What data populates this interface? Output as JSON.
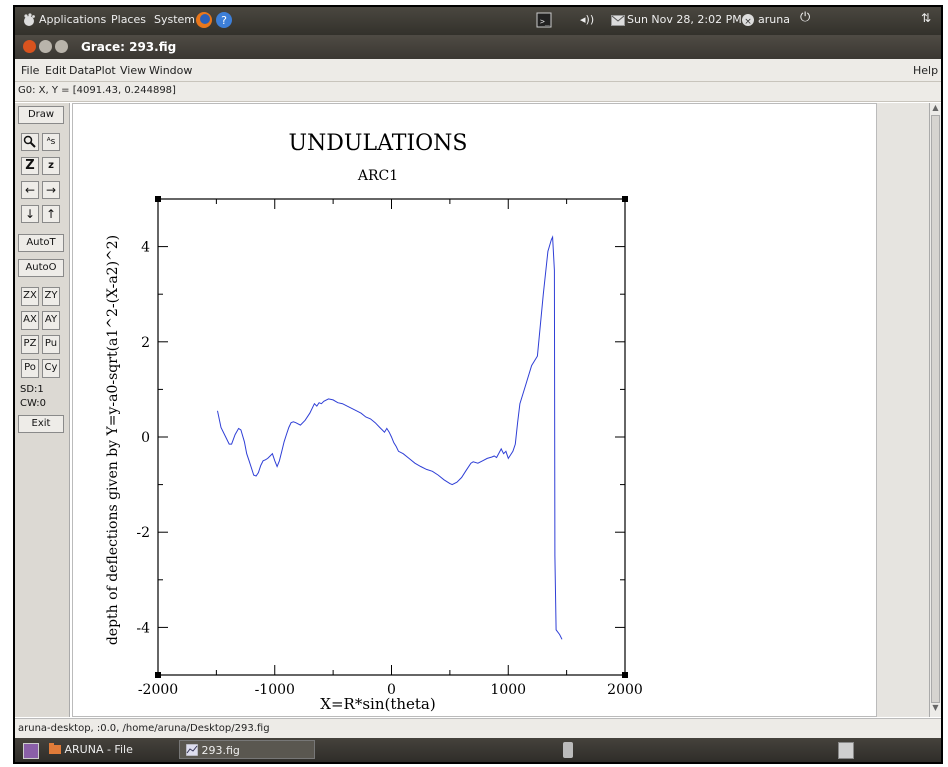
{
  "top_panel": {
    "applications": "Applications",
    "places": "Places",
    "system": "System",
    "datetime": "Sun Nov 28,  2:02 PM",
    "user": "aruna"
  },
  "window": {
    "title": "Grace: 293.fig"
  },
  "menubar": {
    "file": "File",
    "edit": "Edit",
    "data": "Data",
    "plot": "Plot",
    "view": "View",
    "window": "Window",
    "help": "Help"
  },
  "locator": "G0: X, Y = [4091.43, 0.244898]",
  "tools": {
    "draw": "Draw",
    "zoom_x": "Z",
    "zoom_y": "z",
    "autot": "AutoT",
    "autoo": "AutoO",
    "zx": "ZX",
    "zy": "ZY",
    "ax": "AX",
    "ay": "AY",
    "pz": "PZ",
    "pu": "Pu",
    "po": "Po",
    "cy": "Cy",
    "sd": "SD:1",
    "cw": "CW:0",
    "exit": "Exit"
  },
  "statusbar": "aruna-desktop, :0.0, /home/aruna/Desktop/293.fig",
  "taskbar": {
    "file_browser": "ARUNA - File Browser",
    "grace_task": "293.fig"
  },
  "chart_data": {
    "type": "line",
    "title": "UNDULATIONS",
    "subtitle": "ARC1",
    "xlabel": "X=R*sin(theta)",
    "ylabel": "depth of deflections given by Y=y-a0-sqrt(a1^2-(X-a2)^2)",
    "xlim": [
      -2000,
      2000
    ],
    "ylim": [
      -5,
      5
    ],
    "xticks": [
      "-2000",
      "-1000",
      "0",
      "1000",
      "2000"
    ],
    "yticks": [
      "4",
      "2",
      "0",
      "-2",
      "-4"
    ],
    "grid": false,
    "series": [
      {
        "color": "#2f3fd6",
        "x": [
          -1490,
          -1460,
          -1420,
          -1390,
          -1370,
          -1340,
          -1310,
          -1290,
          -1260,
          -1240,
          -1220,
          -1200,
          -1180,
          -1160,
          -1140,
          -1120,
          -1100,
          -1080,
          -1060,
          -1040,
          -1020,
          -1000,
          -980,
          -960,
          -940,
          -920,
          -900,
          -880,
          -860,
          -840,
          -820,
          -780,
          -740,
          -700,
          -660,
          -640,
          -620,
          -600,
          -580,
          -540,
          -500,
          -460,
          -420,
          -380,
          -340,
          -300,
          -260,
          -220,
          -180,
          -140,
          -100,
          -80,
          -60,
          -40,
          -20,
          0,
          20,
          40,
          60,
          100,
          150,
          200,
          250,
          300,
          350,
          400,
          450,
          500,
          520,
          560,
          600,
          640,
          680,
          700,
          740,
          780,
          820,
          860,
          880,
          900,
          940,
          960,
          980,
          1000,
          1040,
          1060,
          1080,
          1100,
          1150,
          1200,
          1250,
          1300,
          1340,
          1370,
          1380,
          1395,
          1400,
          1410,
          1440,
          1460
        ],
        "y": [
          0.55,
          0.2,
          0.0,
          -0.15,
          -0.15,
          0.05,
          0.18,
          0.15,
          -0.1,
          -0.35,
          -0.5,
          -0.65,
          -0.8,
          -0.82,
          -0.75,
          -0.6,
          -0.5,
          -0.48,
          -0.45,
          -0.4,
          -0.35,
          -0.5,
          -0.62,
          -0.5,
          -0.3,
          -0.1,
          0.05,
          0.2,
          0.3,
          0.32,
          0.3,
          0.25,
          0.35,
          0.5,
          0.7,
          0.65,
          0.72,
          0.7,
          0.75,
          0.8,
          0.78,
          0.72,
          0.7,
          0.65,
          0.6,
          0.55,
          0.5,
          0.42,
          0.38,
          0.3,
          0.2,
          0.15,
          0.1,
          0.18,
          0.1,
          0.0,
          -0.12,
          -0.2,
          -0.3,
          -0.35,
          -0.45,
          -0.55,
          -0.62,
          -0.68,
          -0.72,
          -0.8,
          -0.9,
          -0.98,
          -1.0,
          -0.95,
          -0.85,
          -0.7,
          -0.55,
          -0.52,
          -0.55,
          -0.5,
          -0.45,
          -0.42,
          -0.4,
          -0.43,
          -0.25,
          -0.35,
          -0.3,
          -0.45,
          -0.3,
          -0.15,
          0.3,
          0.7,
          1.1,
          1.5,
          1.7,
          3.0,
          3.9,
          4.15,
          4.2,
          3.5,
          -2.5,
          -4.05,
          -4.15,
          -4.25
        ]
      }
    ]
  }
}
